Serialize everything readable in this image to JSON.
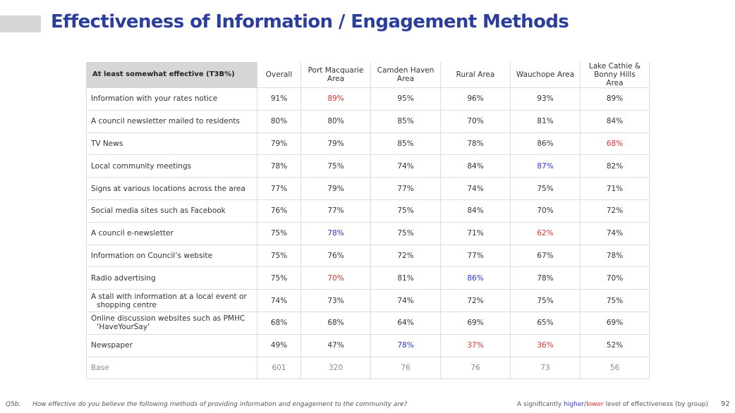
{
  "title": "Effectiveness of Information / Engagement Methods",
  "table": {
    "corner_label": "At least somewhat effective (T3B%)",
    "columns": [
      "Overall",
      "Port Macquarie Area",
      "Camden Haven Area",
      "Rural Area",
      "Wauchope Area",
      "Lake Cathie & Bonny Hills Area"
    ],
    "rows": [
      {
        "label": "Information with your rates notice",
        "values": [
          "91%",
          "89%",
          "95%",
          "96%",
          "93%",
          "89%"
        ],
        "flags": [
          "",
          "lower",
          "",
          "",
          "",
          ""
        ]
      },
      {
        "label": "A council newsletter mailed to residents",
        "values": [
          "80%",
          "80%",
          "85%",
          "70%",
          "81%",
          "84%"
        ],
        "flags": [
          "",
          "",
          "",
          "",
          "",
          ""
        ]
      },
      {
        "label": "TV News",
        "values": [
          "79%",
          "79%",
          "85%",
          "78%",
          "86%",
          "68%"
        ],
        "flags": [
          "",
          "",
          "",
          "",
          "",
          "lower"
        ]
      },
      {
        "label": "Local community meetings",
        "values": [
          "78%",
          "75%",
          "74%",
          "84%",
          "87%",
          "82%"
        ],
        "flags": [
          "",
          "",
          "",
          "",
          "higher",
          ""
        ]
      },
      {
        "label": "Signs at various locations across the area",
        "values": [
          "77%",
          "79%",
          "77%",
          "74%",
          "75%",
          "71%"
        ],
        "flags": [
          "",
          "",
          "",
          "",
          "",
          ""
        ]
      },
      {
        "label": "Social media sites such as Facebook",
        "values": [
          "76%",
          "77%",
          "75%",
          "84%",
          "70%",
          "72%"
        ],
        "flags": [
          "",
          "",
          "",
          "",
          "",
          ""
        ]
      },
      {
        "label": "A council e-newsletter",
        "values": [
          "75%",
          "78%",
          "75%",
          "71%",
          "62%",
          "74%"
        ],
        "flags": [
          "",
          "higher",
          "",
          "",
          "lower",
          ""
        ]
      },
      {
        "label": "Information on Council’s website",
        "values": [
          "75%",
          "76%",
          "72%",
          "77%",
          "67%",
          "78%"
        ],
        "flags": [
          "",
          "",
          "",
          "",
          "",
          ""
        ]
      },
      {
        "label": "Radio advertising",
        "values": [
          "75%",
          "70%",
          "81%",
          "86%",
          "78%",
          "70%"
        ],
        "flags": [
          "",
          "lower",
          "",
          "higher",
          "",
          ""
        ]
      },
      {
        "label": "A stall with information at a local event or",
        "label2": "shopping centre",
        "values": [
          "74%",
          "73%",
          "74%",
          "72%",
          "75%",
          "75%"
        ],
        "flags": [
          "",
          "",
          "",
          "",
          "",
          ""
        ]
      },
      {
        "label": "Online discussion websites such as PMHC",
        "label2": "‘HaveYourSay’",
        "values": [
          "68%",
          "68%",
          "64%",
          "69%",
          "65%",
          "69%"
        ],
        "flags": [
          "",
          "",
          "",
          "",
          "",
          ""
        ]
      },
      {
        "label": "Newspaper",
        "values": [
          "49%",
          "47%",
          "78%",
          "37%",
          "36%",
          "52%"
        ],
        "flags": [
          "",
          "",
          "higher",
          "lower",
          "lower",
          ""
        ]
      }
    ],
    "base": {
      "label": "Base",
      "values": [
        "601",
        "320",
        "76",
        "76",
        "73",
        "56"
      ]
    }
  },
  "footer": {
    "question_code": "Q5b.",
    "question_text": "How effective do you believe the following methods of providing information and engagement to the community are?",
    "note_prefix": "A significantly ",
    "note_higher": "higher",
    "note_sep": "/",
    "note_lower": "lower",
    "note_suffix": " level of effectiveness (by group)",
    "page_number": "92"
  },
  "colors": {
    "title": "#2c3e9b",
    "higher": "#2b35d6",
    "lower": "#e03030",
    "header_bg": "#d6d6d6"
  }
}
